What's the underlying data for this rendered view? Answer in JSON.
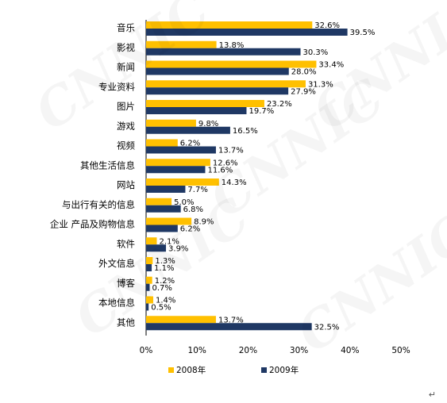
{
  "chart_data": {
    "type": "bar",
    "orientation": "horizontal",
    "categories": [
      "音乐",
      "影视",
      "新闻",
      "专业资料",
      "图片",
      "游戏",
      "视频",
      "其他生活信息",
      "网站",
      "与出行有关的信息",
      "企业 产品及购物信息",
      "软件",
      "外文信息",
      "博客",
      "本地信息",
      "其他"
    ],
    "series": [
      {
        "name": "2008年",
        "color": "#FFC000",
        "values": [
          32.6,
          13.8,
          33.4,
          31.3,
          23.2,
          9.8,
          6.2,
          12.6,
          14.3,
          5.0,
          8.9,
          2.1,
          1.3,
          1.2,
          1.4,
          13.7
        ]
      },
      {
        "name": "2009年",
        "color": "#1F3864",
        "values": [
          39.5,
          30.3,
          28.0,
          27.9,
          19.7,
          16.5,
          13.7,
          11.6,
          7.7,
          6.8,
          6.2,
          3.9,
          1.1,
          0.7,
          0.5,
          32.5
        ]
      }
    ],
    "xlim": [
      0,
      50
    ],
    "xticks": [
      "0%",
      "10%",
      "20%",
      "30%",
      "40%",
      "50%"
    ],
    "grid": false,
    "legend_position": "bottom",
    "watermark": "CNNIC"
  }
}
